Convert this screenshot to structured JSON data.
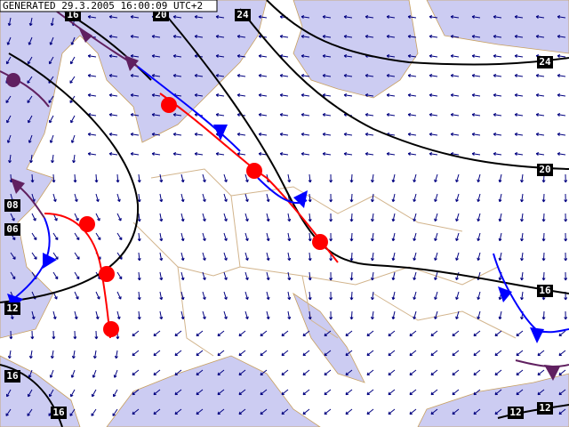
{
  "header": {
    "generated": "GENERATED 29.3.2005 16:00:09 UTC+2"
  },
  "isobar_labels": [
    "16",
    "20",
    "24",
    "24",
    "20",
    "16",
    "08",
    "06",
    "12",
    "16",
    "16",
    "12",
    "12"
  ]
}
